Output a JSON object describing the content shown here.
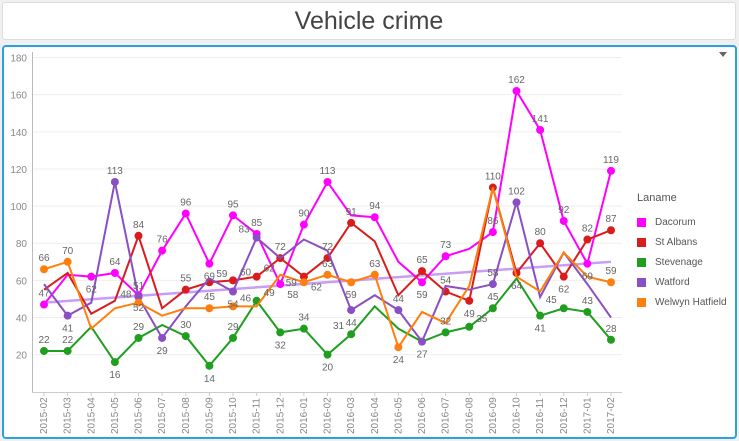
{
  "header": {
    "title": "Vehicle crime"
  },
  "chart_data": {
    "type": "line",
    "title": "Vehicle crime",
    "xlabel": "",
    "ylabel": "",
    "ylim": [
      0,
      180
    ],
    "yticks": [
      20,
      40,
      60,
      80,
      100,
      120,
      140,
      160,
      180
    ],
    "grid": true,
    "legend_title": "Laname",
    "legend_position": "right",
    "categories": [
      "2015-02",
      "2015-03",
      "2015-04",
      "2015-05",
      "2015-06",
      "2015-07",
      "2015-08",
      "2015-09",
      "2015-10",
      "2015-11",
      "2015-12",
      "2016-01",
      "2016-02",
      "2016-03",
      "2016-04",
      "2016-05",
      "2016-06",
      "2016-07",
      "2016-08",
      "2016-09",
      "2016-10",
      "2016-11",
      "2016-12",
      "2017-01",
      "2017-02"
    ],
    "series": [
      {
        "name": "Dacorum",
        "color": "#ff00ff",
        "values": [
          47,
          63,
          62,
          64,
          52,
          76,
          96,
          69,
          95,
          85,
          58,
          90,
          113,
          95,
          94,
          70,
          59,
          73,
          77,
          86,
          162,
          141,
          92,
          69,
          119
        ],
        "labeled": [
          0,
          2,
          3,
          4,
          5,
          6,
          7,
          8,
          9,
          10,
          11,
          12,
          14,
          16,
          17,
          19,
          20,
          21,
          22,
          23,
          24
        ]
      },
      {
        "name": "St Albans",
        "color": "#d91c1c",
        "values": [
          55,
          64,
          42,
          49,
          84,
          45,
          55,
          59,
          60,
          62,
          72,
          62,
          72,
          91,
          81,
          52,
          65,
          54,
          49,
          110,
          64,
          80,
          62,
          82,
          87
        ],
        "labeled": [
          4,
          6,
          7,
          8,
          9,
          10,
          11,
          12,
          13,
          16,
          17,
          18,
          19,
          20,
          21,
          22,
          23,
          24
        ]
      },
      {
        "name": "Stevenage",
        "color": "#1f9e1f",
        "values": [
          22,
          22,
          35,
          16,
          29,
          36,
          30,
          14,
          29,
          49,
          32,
          34,
          20,
          31,
          46,
          34,
          27,
          32,
          35,
          45,
          61,
          41,
          45,
          43,
          28
        ],
        "labeled": [
          0,
          1,
          3,
          4,
          6,
          7,
          8,
          9,
          10,
          11,
          12,
          13,
          17,
          18,
          19,
          21,
          22,
          23,
          24
        ]
      },
      {
        "name": "Watford",
        "color": "#8a4fc2",
        "values": [
          58,
          41,
          48,
          113,
          51,
          29,
          46,
          61,
          54,
          83,
          72,
          82,
          76,
          44,
          52,
          44,
          27,
          57,
          55,
          58,
          102,
          51,
          75,
          58,
          40
        ],
        "labeled": [
          1,
          3,
          4,
          5,
          8,
          9,
          13,
          15,
          16,
          19,
          20
        ]
      },
      {
        "name": "Welwyn Hatfield",
        "color": "#ff7f0e",
        "values": [
          66,
          70,
          34,
          45,
          48,
          41,
          45,
          45,
          46,
          46,
          63,
          59,
          63,
          59,
          63,
          24,
          43,
          37,
          57,
          110,
          62,
          54,
          75,
          62,
          59
        ],
        "labeled": [
          0,
          1,
          4,
          7,
          8,
          11,
          12,
          13,
          14,
          15,
          24
        ]
      }
    ],
    "trendline": {
      "color": "#c99cf5",
      "start": 48,
      "end": 70
    }
  }
}
